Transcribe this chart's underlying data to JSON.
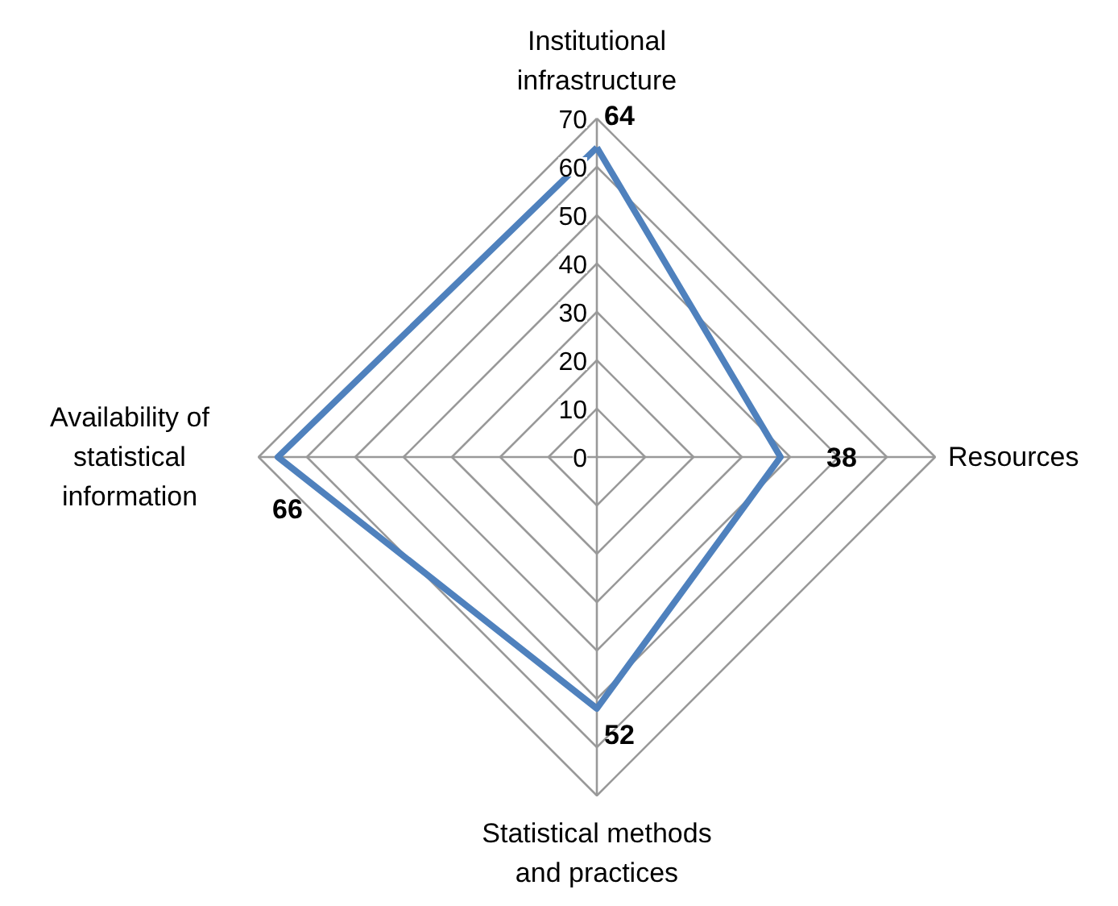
{
  "chart_data": {
    "type": "radar",
    "categories": [
      "Institutional\ninfrastructure",
      "Resources",
      "Statistical methods\nand practices",
      "Availability of\nstatistical\ninformation"
    ],
    "series": [
      {
        "color": "#4f81bd",
        "values": [
          64,
          38,
          52,
          66
        ]
      }
    ],
    "ylim": [
      0,
      70
    ],
    "yticks": [
      0,
      10,
      20,
      30,
      40,
      50,
      60,
      70
    ],
    "grid": true,
    "data_labels": true,
    "marker": "none"
  }
}
